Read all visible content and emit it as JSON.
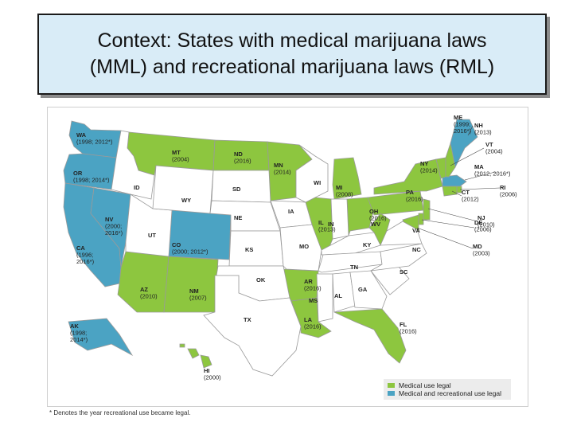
{
  "title": {
    "line1": "Context: States with medical marijuana laws",
    "line2": "(MML) and recreational marijuana laws (RML)"
  },
  "colors": {
    "medical": "#8dc63f",
    "recreational": "#4ba3c3",
    "none": "#ffffff",
    "border": "#9a9a9a"
  },
  "legend": {
    "medical": "Medical use legal",
    "recreational": "Medical and recreational use legal"
  },
  "footnote": "* Denotes the year recreational use became legal.",
  "states": [
    {
      "abbr": "WA",
      "year": "(1998; 2012*)",
      "status": "recreational"
    },
    {
      "abbr": "OR",
      "year": "(1998; 2014*)",
      "status": "recreational"
    },
    {
      "abbr": "CA",
      "year": "(1996;\n2016*)",
      "status": "recreational"
    },
    {
      "abbr": "NV",
      "year": "(2000;\n2016*)",
      "status": "recreational"
    },
    {
      "abbr": "CO",
      "year": "(2000; 2012*)",
      "status": "recreational"
    },
    {
      "abbr": "AK",
      "year": "(1998;\n2014*)",
      "status": "recreational"
    },
    {
      "abbr": "ME",
      "year": "(1999;\n2016*)",
      "status": "recreational"
    },
    {
      "abbr": "MA",
      "year": "(2012, 2016*)",
      "status": "recreational"
    },
    {
      "abbr": "MT",
      "year": "(2004)",
      "status": "medical"
    },
    {
      "abbr": "ND",
      "year": "(2016)",
      "status": "medical"
    },
    {
      "abbr": "MN",
      "year": "(2014)",
      "status": "medical"
    },
    {
      "abbr": "MI",
      "year": "(2008)",
      "status": "medical"
    },
    {
      "abbr": "IL",
      "year": "(2013)",
      "status": "medical"
    },
    {
      "abbr": "OH",
      "year": "(2016)",
      "status": "medical"
    },
    {
      "abbr": "PA",
      "year": "(2016)",
      "status": "medical"
    },
    {
      "abbr": "NY",
      "year": "(2014)",
      "status": "medical"
    },
    {
      "abbr": "VT",
      "year": "(2004)",
      "status": "medical"
    },
    {
      "abbr": "NH",
      "year": "(2013)",
      "status": "medical"
    },
    {
      "abbr": "RI",
      "year": "(2006)",
      "status": "medical"
    },
    {
      "abbr": "CT",
      "year": "(2012)",
      "status": "medical"
    },
    {
      "abbr": "NJ",
      "year": "(2010)",
      "status": "medical"
    },
    {
      "abbr": "DE",
      "year": "(2006)",
      "status": "medical"
    },
    {
      "abbr": "MD",
      "year": "(2003)",
      "status": "medical"
    },
    {
      "abbr": "AZ",
      "year": "(2010)",
      "status": "medical"
    },
    {
      "abbr": "NM",
      "year": "(2007)",
      "status": "medical"
    },
    {
      "abbr": "AR",
      "year": "(2016)",
      "status": "medical"
    },
    {
      "abbr": "LA",
      "year": "(2016)",
      "status": "medical"
    },
    {
      "abbr": "FL",
      "year": "(2016)",
      "status": "medical"
    },
    {
      "abbr": "HI",
      "year": "(2000)",
      "status": "medical"
    },
    {
      "abbr": "WV",
      "year": "",
      "status": "medical"
    },
    {
      "abbr": "ID",
      "year": "",
      "status": "none"
    },
    {
      "abbr": "UT",
      "year": "",
      "status": "none"
    },
    {
      "abbr": "WY",
      "year": "",
      "status": "none"
    },
    {
      "abbr": "SD",
      "year": "",
      "status": "none"
    },
    {
      "abbr": "NE",
      "year": "",
      "status": "none"
    },
    {
      "abbr": "KS",
      "year": "",
      "status": "none"
    },
    {
      "abbr": "OK",
      "year": "",
      "status": "none"
    },
    {
      "abbr": "TX",
      "year": "",
      "status": "none"
    },
    {
      "abbr": "IA",
      "year": "",
      "status": "none"
    },
    {
      "abbr": "MO",
      "year": "",
      "status": "none"
    },
    {
      "abbr": "WI",
      "year": "",
      "status": "none"
    },
    {
      "abbr": "IN",
      "year": "",
      "status": "none"
    },
    {
      "abbr": "KY",
      "year": "",
      "status": "none"
    },
    {
      "abbr": "TN",
      "year": "",
      "status": "none"
    },
    {
      "abbr": "MS",
      "year": "",
      "status": "none"
    },
    {
      "abbr": "AL",
      "year": "",
      "status": "none"
    },
    {
      "abbr": "GA",
      "year": "",
      "status": "none"
    },
    {
      "abbr": "SC",
      "year": "",
      "status": "none"
    },
    {
      "abbr": "NC",
      "year": "",
      "status": "none"
    },
    {
      "abbr": "VA",
      "year": "",
      "status": "none"
    }
  ]
}
